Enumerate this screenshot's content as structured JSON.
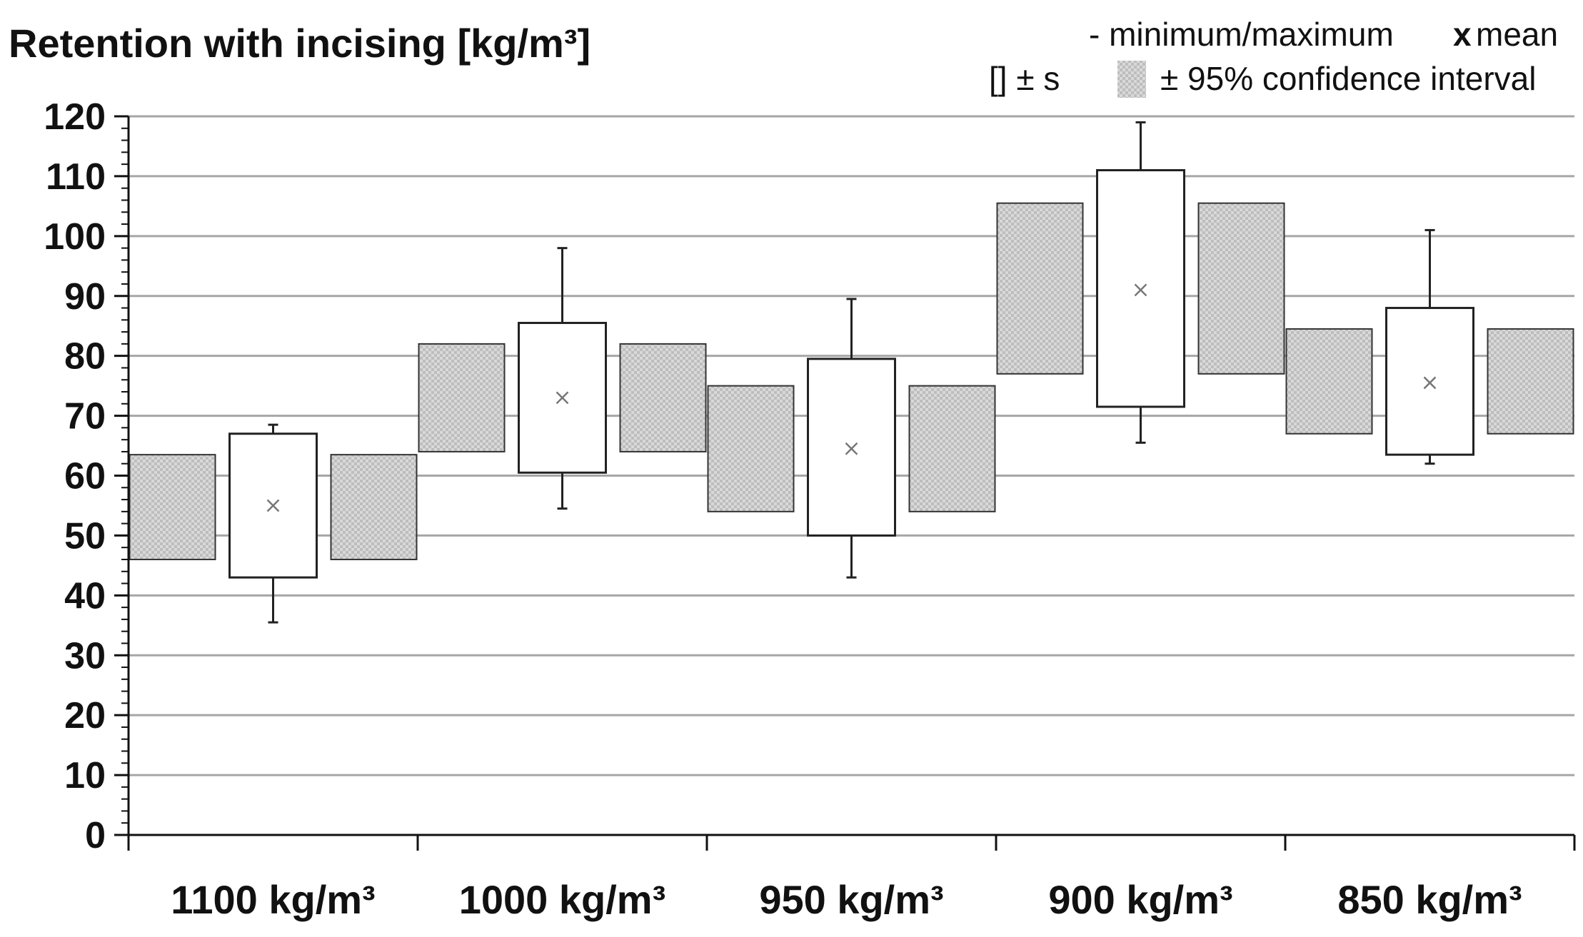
{
  "chart_data": {
    "type": "box",
    "title": "Retention with incising [kg/m³]",
    "xlabel": "",
    "ylabel": "",
    "ylim": [
      0,
      120
    ],
    "y_major_step": 10,
    "y_minor_step": 2,
    "grid": "horizontal major",
    "legend": {
      "placement": "top-right",
      "items": {
        "minmax": "- minimum/maximum",
        "mean_marker": "x",
        "mean": "mean",
        "sd": "[] ± s",
        "ci": "± 95% confidence interval"
      }
    },
    "categories": [
      "1100 kg/m³",
      "1000 kg/m³",
      "950 kg/m³",
      "900 kg/m³",
      "850 kg/m³"
    ],
    "series": [
      {
        "category": "1100 kg/m³",
        "min": 35.5,
        "max": 68.5,
        "sd_low": 43,
        "sd_high": 67,
        "ci_low": 46,
        "ci_high": 63.5,
        "mean": 55
      },
      {
        "category": "1000 kg/m³",
        "min": 54.5,
        "max": 98,
        "sd_low": 60.5,
        "sd_high": 85.5,
        "ci_low": 64,
        "ci_high": 82,
        "mean": 73
      },
      {
        "category": "950 kg/m³",
        "min": 43,
        "max": 89.5,
        "sd_low": 50,
        "sd_high": 79.5,
        "ci_low": 54,
        "ci_high": 75,
        "mean": 64.5
      },
      {
        "category": "900 kg/m³",
        "min": 65.5,
        "max": 119,
        "sd_low": 71.5,
        "sd_high": 111,
        "ci_low": 77,
        "ci_high": 105.5,
        "mean": 91
      },
      {
        "category": "850 kg/m³",
        "min": 62,
        "max": 101,
        "sd_low": 63.5,
        "sd_high": 88,
        "ci_low": 67,
        "ci_high": 84.5,
        "mean": 75.5
      }
    ],
    "colors": {
      "axis": "#111111",
      "grid": "#a6a6a6",
      "box_fill": "#ffffff",
      "box_stroke": "#222222",
      "ci_fill": "#d6d6d6",
      "ci_pattern": "#b3b3b3",
      "mean_marker": "#777777"
    }
  }
}
